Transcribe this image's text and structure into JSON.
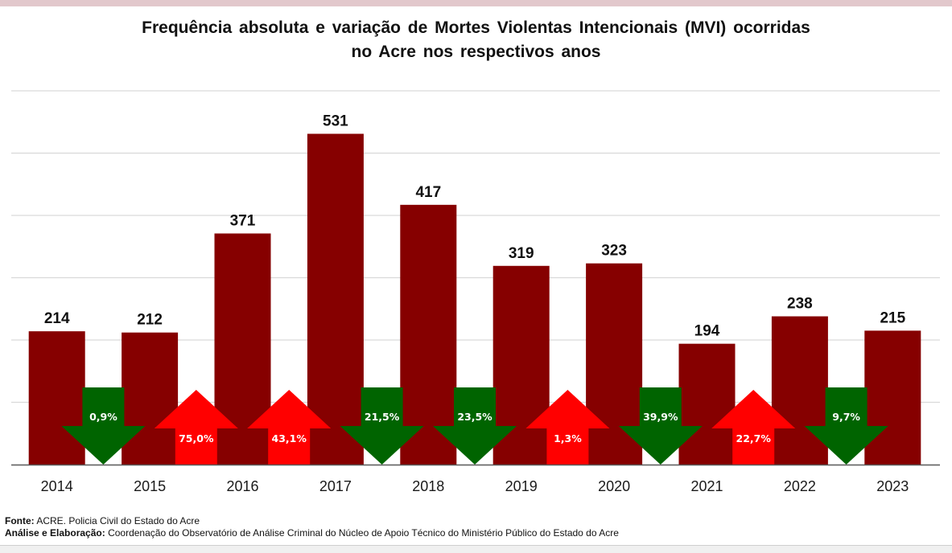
{
  "title_line1": "Frequência absoluta e variação de Mortes Violentas Intencionais (MVI) ocorridas",
  "title_line2": "no Acre nos respectivos anos",
  "footer": {
    "source_label": "Fonte:",
    "source_text": "ACRE. Policia Civil do Estado do Acre",
    "analysis_label": "Análise e Elaboração:",
    "analysis_text": "Coordenação do Observatório de Análise Criminal do Núcleo de Apoio Técnico do Ministério Público do Estado do Acre"
  },
  "colors": {
    "bar": "#860000",
    "increase_arrow": "#ff0000",
    "decrease_arrow": "#006400",
    "gridline": "#d9d9d9",
    "axis": "#595959"
  },
  "chart_data": {
    "type": "bar",
    "title": "Frequência absoluta e variação de Mortes Violentas Intencionais (MVI) ocorridas no Acre nos respectivos anos",
    "xlabel": "",
    "ylabel": "",
    "categories": [
      "2014",
      "2015",
      "2016",
      "2017",
      "2018",
      "2019",
      "2020",
      "2021",
      "2022",
      "2023"
    ],
    "values": [
      214,
      212,
      371,
      531,
      417,
      319,
      323,
      194,
      238,
      215
    ],
    "ylim": [
      0,
      600
    ],
    "grid": true,
    "y_gridline_step": 100,
    "y_tick_labels_shown": false,
    "data_labels": [
      "214",
      "212",
      "371",
      "531",
      "417",
      "319",
      "323",
      "194",
      "238",
      "215"
    ],
    "variations": [
      {
        "from": "2014",
        "to": "2015",
        "direction": "down",
        "label": "0,9%"
      },
      {
        "from": "2015",
        "to": "2016",
        "direction": "up",
        "label": "75,0%"
      },
      {
        "from": "2016",
        "to": "2017",
        "direction": "up",
        "label": "43,1%"
      },
      {
        "from": "2017",
        "to": "2018",
        "direction": "down",
        "label": "21,5%"
      },
      {
        "from": "2018",
        "to": "2019",
        "direction": "down",
        "label": "23,5%"
      },
      {
        "from": "2019",
        "to": "2020",
        "direction": "up",
        "label": "1,3%"
      },
      {
        "from": "2020",
        "to": "2021",
        "direction": "down",
        "label": "39,9%"
      },
      {
        "from": "2021",
        "to": "2022",
        "direction": "up",
        "label": "22,7%"
      },
      {
        "from": "2022",
        "to": "2023",
        "direction": "down",
        "label": "9,7%"
      }
    ]
  }
}
